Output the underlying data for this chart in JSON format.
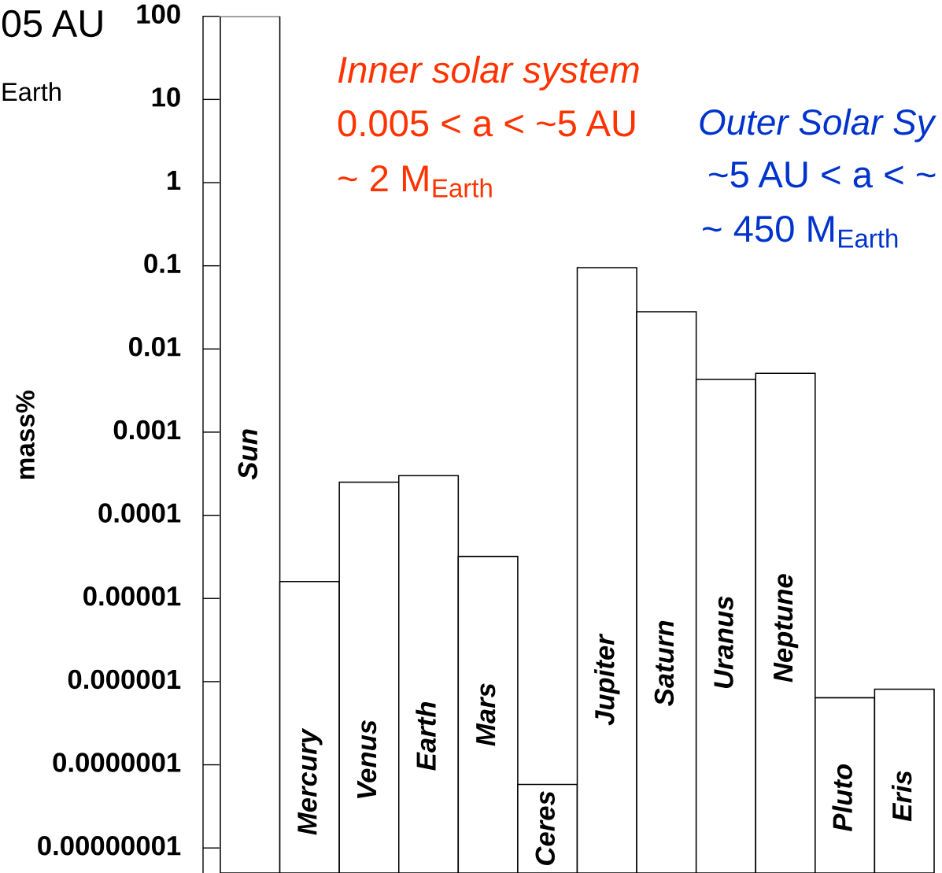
{
  "chart_data": {
    "type": "bar",
    "ylabel": "mass%",
    "categories": [
      "Sun",
      "Mercury",
      "Venus",
      "Earth",
      "Mars",
      "Ceres",
      "Jupiter",
      "Saturn",
      "Uranus",
      "Neptune",
      "Pluto",
      "Eris"
    ],
    "values": [
      100,
      1.6e-05,
      0.00025,
      0.0003,
      3.2e-05,
      5.8e-08,
      0.095,
      0.028,
      0.0043,
      0.0051,
      6.4e-07,
      8.1e-07
    ],
    "color": "#ffffff",
    "log": true,
    "ylim": [
      5e-09,
      100
    ],
    "yticks": [
      100,
      10,
      1,
      0.1,
      0.01,
      0.001,
      0.0001,
      {
        "value": 1e-05,
        "label": "0.00001"
      },
      {
        "value": 1e-06,
        "label": "0.000001"
      },
      {
        "value": 1e-07,
        "label": "0.0000001"
      },
      {
        "value": 1e-08,
        "label": "0.00000001"
      }
    ],
    "annotations": [
      "05 AU",
      "Earth",
      "Inner solar system",
      "0.005 < a < ~5 AU",
      "~ 2 M$_{Earth}$",
      "Outer Solar Sy",
      "~5 AU < a < ~",
      "~ 450 M$_{Earth}$"
    ]
  }
}
